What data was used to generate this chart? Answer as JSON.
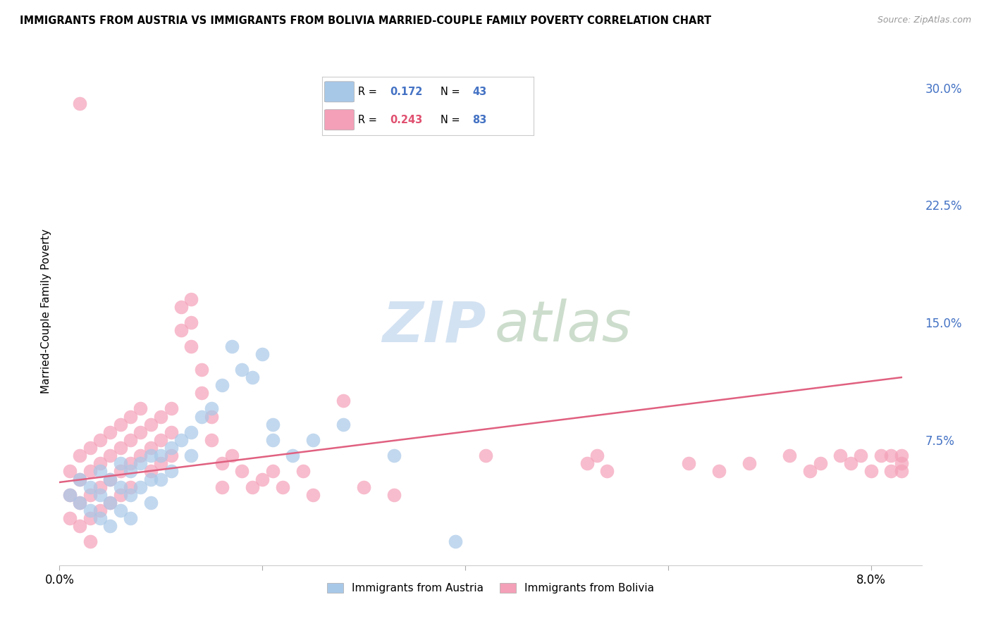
{
  "title": "IMMIGRANTS FROM AUSTRIA VS IMMIGRANTS FROM BOLIVIA MARRIED-COUPLE FAMILY POVERTY CORRELATION CHART",
  "source": "Source: ZipAtlas.com",
  "ylabel": "Married-Couple Family Poverty",
  "legend_austria": "Immigrants from Austria",
  "legend_bolivia": "Immigrants from Bolivia",
  "R_austria": 0.172,
  "N_austria": 43,
  "R_bolivia": 0.243,
  "N_bolivia": 83,
  "xlim": [
    0.0,
    0.085
  ],
  "ylim": [
    -0.005,
    0.32
  ],
  "color_austria": "#a8c8e8",
  "color_bolivia": "#f4a0b8",
  "trendline_color_bolivia": "#e06080",
  "background_color": "#ffffff",
  "grid_color": "#e0e0e0",
  "austria_x": [
    0.001,
    0.002,
    0.002,
    0.003,
    0.003,
    0.004,
    0.004,
    0.004,
    0.005,
    0.005,
    0.005,
    0.006,
    0.006,
    0.006,
    0.007,
    0.007,
    0.007,
    0.008,
    0.008,
    0.009,
    0.009,
    0.009,
    0.01,
    0.01,
    0.011,
    0.011,
    0.012,
    0.013,
    0.013,
    0.014,
    0.015,
    0.016,
    0.017,
    0.018,
    0.019,
    0.02,
    0.021,
    0.021,
    0.023,
    0.025,
    0.028,
    0.033,
    0.039
  ],
  "austria_y": [
    0.04,
    0.05,
    0.035,
    0.045,
    0.03,
    0.055,
    0.04,
    0.025,
    0.05,
    0.035,
    0.02,
    0.06,
    0.045,
    0.03,
    0.055,
    0.04,
    0.025,
    0.06,
    0.045,
    0.065,
    0.05,
    0.035,
    0.065,
    0.05,
    0.07,
    0.055,
    0.075,
    0.08,
    0.065,
    0.09,
    0.095,
    0.11,
    0.135,
    0.12,
    0.115,
    0.13,
    0.085,
    0.075,
    0.065,
    0.075,
    0.085,
    0.065,
    0.01
  ],
  "bolivia_x": [
    0.001,
    0.001,
    0.001,
    0.002,
    0.002,
    0.002,
    0.002,
    0.003,
    0.003,
    0.003,
    0.003,
    0.003,
    0.004,
    0.004,
    0.004,
    0.004,
    0.005,
    0.005,
    0.005,
    0.005,
    0.006,
    0.006,
    0.006,
    0.006,
    0.007,
    0.007,
    0.007,
    0.007,
    0.008,
    0.008,
    0.008,
    0.009,
    0.009,
    0.009,
    0.01,
    0.01,
    0.01,
    0.011,
    0.011,
    0.011,
    0.012,
    0.012,
    0.013,
    0.013,
    0.013,
    0.014,
    0.014,
    0.015,
    0.015,
    0.016,
    0.016,
    0.017,
    0.018,
    0.019,
    0.02,
    0.021,
    0.022,
    0.024,
    0.025,
    0.028,
    0.03,
    0.033,
    0.042,
    0.052,
    0.053,
    0.054,
    0.062,
    0.065,
    0.068,
    0.072,
    0.074,
    0.075,
    0.077,
    0.078,
    0.079,
    0.08,
    0.081,
    0.082,
    0.082,
    0.083,
    0.083,
    0.083,
    0.002
  ],
  "bolivia_y": [
    0.055,
    0.04,
    0.025,
    0.065,
    0.05,
    0.035,
    0.02,
    0.07,
    0.055,
    0.04,
    0.025,
    0.01,
    0.075,
    0.06,
    0.045,
    0.03,
    0.08,
    0.065,
    0.05,
    0.035,
    0.085,
    0.07,
    0.055,
    0.04,
    0.09,
    0.075,
    0.06,
    0.045,
    0.095,
    0.08,
    0.065,
    0.085,
    0.07,
    0.055,
    0.09,
    0.075,
    0.06,
    0.095,
    0.08,
    0.065,
    0.16,
    0.145,
    0.165,
    0.15,
    0.135,
    0.12,
    0.105,
    0.09,
    0.075,
    0.06,
    0.045,
    0.065,
    0.055,
    0.045,
    0.05,
    0.055,
    0.045,
    0.055,
    0.04,
    0.1,
    0.045,
    0.04,
    0.065,
    0.06,
    0.065,
    0.055,
    0.06,
    0.055,
    0.06,
    0.065,
    0.055,
    0.06,
    0.065,
    0.06,
    0.065,
    0.055,
    0.065,
    0.055,
    0.065,
    0.055,
    0.065,
    0.06,
    0.29
  ]
}
